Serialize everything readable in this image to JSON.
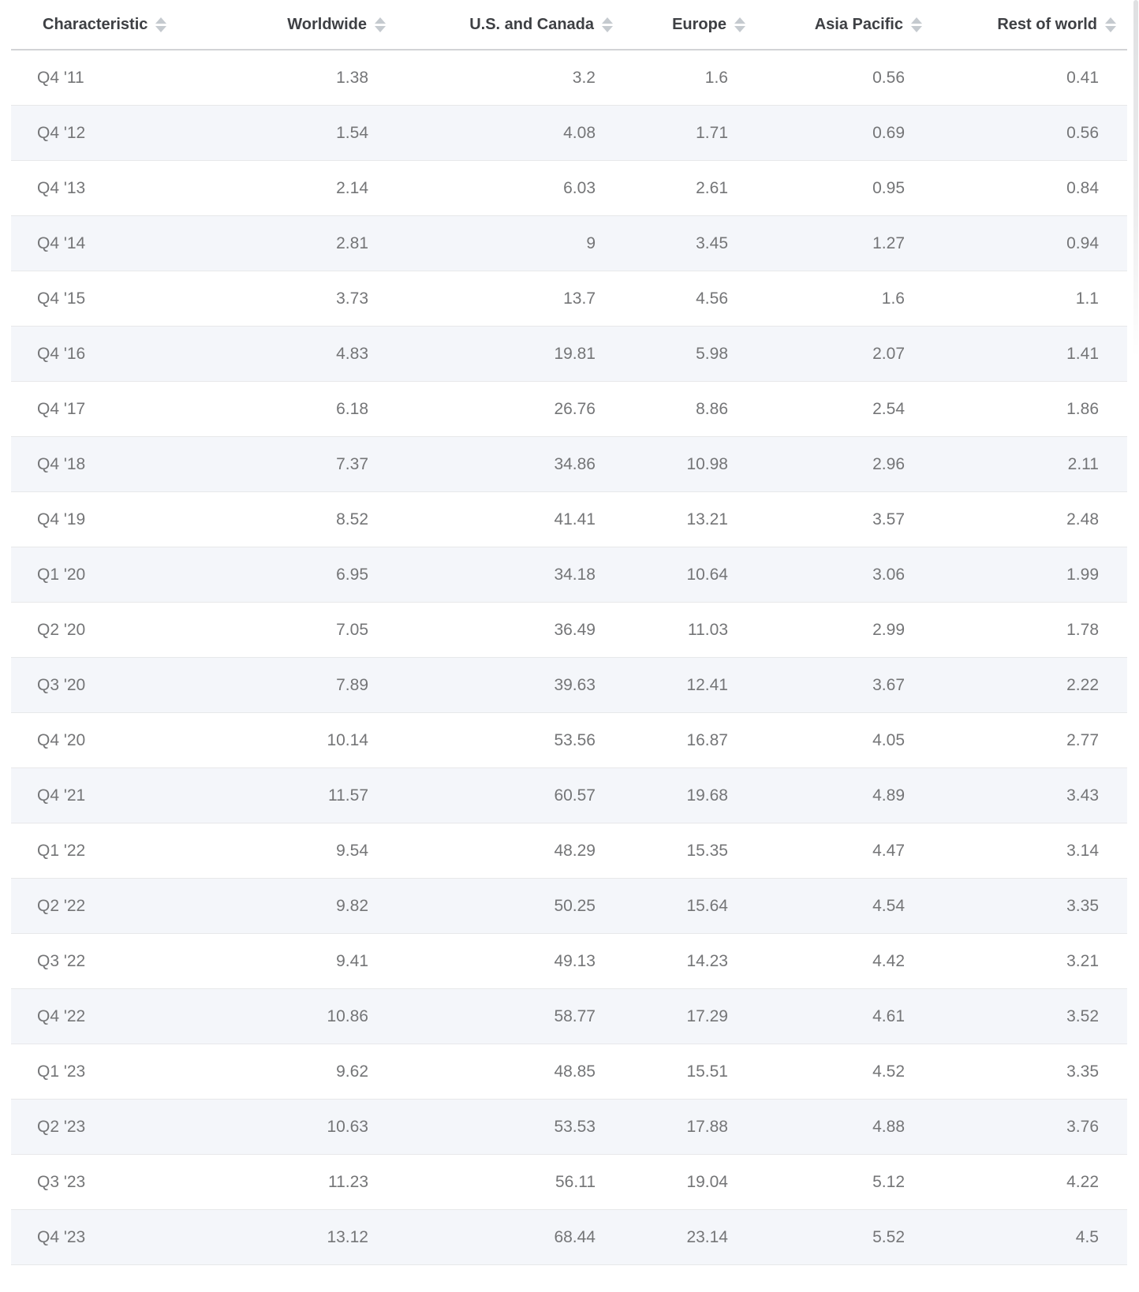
{
  "table": {
    "columns": [
      {
        "label": "Characteristic"
      },
      {
        "label": "Worldwide"
      },
      {
        "label": "U.S. and Canada"
      },
      {
        "label": "Europe"
      },
      {
        "label": "Asia Pacific"
      },
      {
        "label": "Rest of world"
      }
    ],
    "rows": [
      {
        "label": "Q4 '11",
        "values": [
          "1.38",
          "3.2",
          "1.6",
          "0.56",
          "0.41"
        ]
      },
      {
        "label": "Q4 '12",
        "values": [
          "1.54",
          "4.08",
          "1.71",
          "0.69",
          "0.56"
        ]
      },
      {
        "label": "Q4 '13",
        "values": [
          "2.14",
          "6.03",
          "2.61",
          "0.95",
          "0.84"
        ]
      },
      {
        "label": "Q4 '14",
        "values": [
          "2.81",
          "9",
          "3.45",
          "1.27",
          "0.94"
        ]
      },
      {
        "label": "Q4 '15",
        "values": [
          "3.73",
          "13.7",
          "4.56",
          "1.6",
          "1.1"
        ]
      },
      {
        "label": "Q4 '16",
        "values": [
          "4.83",
          "19.81",
          "5.98",
          "2.07",
          "1.41"
        ]
      },
      {
        "label": "Q4 '17",
        "values": [
          "6.18",
          "26.76",
          "8.86",
          "2.54",
          "1.86"
        ]
      },
      {
        "label": "Q4 '18",
        "values": [
          "7.37",
          "34.86",
          "10.98",
          "2.96",
          "2.11"
        ]
      },
      {
        "label": "Q4 '19",
        "values": [
          "8.52",
          "41.41",
          "13.21",
          "3.57",
          "2.48"
        ]
      },
      {
        "label": "Q1 '20",
        "values": [
          "6.95",
          "34.18",
          "10.64",
          "3.06",
          "1.99"
        ]
      },
      {
        "label": "Q2 '20",
        "values": [
          "7.05",
          "36.49",
          "11.03",
          "2.99",
          "1.78"
        ]
      },
      {
        "label": "Q3 '20",
        "values": [
          "7.89",
          "39.63",
          "12.41",
          "3.67",
          "2.22"
        ]
      },
      {
        "label": "Q4 '20",
        "values": [
          "10.14",
          "53.56",
          "16.87",
          "4.05",
          "2.77"
        ]
      },
      {
        "label": "Q4 '21",
        "values": [
          "11.57",
          "60.57",
          "19.68",
          "4.89",
          "3.43"
        ]
      },
      {
        "label": "Q1 '22",
        "values": [
          "9.54",
          "48.29",
          "15.35",
          "4.47",
          "3.14"
        ]
      },
      {
        "label": "Q2 '22",
        "values": [
          "9.82",
          "50.25",
          "15.64",
          "4.54",
          "3.35"
        ]
      },
      {
        "label": "Q3 '22",
        "values": [
          "9.41",
          "49.13",
          "14.23",
          "4.42",
          "3.21"
        ]
      },
      {
        "label": "Q4 '22",
        "values": [
          "10.86",
          "58.77",
          "17.29",
          "4.61",
          "3.52"
        ]
      },
      {
        "label": "Q1 '23",
        "values": [
          "9.62",
          "48.85",
          "15.51",
          "4.52",
          "3.35"
        ]
      },
      {
        "label": "Q2 '23",
        "values": [
          "10.63",
          "53.53",
          "17.88",
          "4.88",
          "3.76"
        ]
      },
      {
        "label": "Q3 '23",
        "values": [
          "11.23",
          "56.11",
          "19.04",
          "5.12",
          "4.22"
        ]
      },
      {
        "label": "Q4 '23",
        "values": [
          "13.12",
          "68.44",
          "23.14",
          "5.52",
          "4.5"
        ]
      }
    ]
  },
  "chart_data": {
    "type": "table",
    "categories": [
      "Q4 '11",
      "Q4 '12",
      "Q4 '13",
      "Q4 '14",
      "Q4 '15",
      "Q4 '16",
      "Q4 '17",
      "Q4 '18",
      "Q4 '19",
      "Q1 '20",
      "Q2 '20",
      "Q3 '20",
      "Q4 '20",
      "Q4 '21",
      "Q1 '22",
      "Q2 '22",
      "Q3 '22",
      "Q4 '22",
      "Q1 '23",
      "Q2 '23",
      "Q3 '23",
      "Q4 '23"
    ],
    "series": [
      {
        "name": "Worldwide",
        "values": [
          1.38,
          1.54,
          2.14,
          2.81,
          3.73,
          4.83,
          6.18,
          7.37,
          8.52,
          6.95,
          7.05,
          7.89,
          10.14,
          11.57,
          9.54,
          9.82,
          9.41,
          10.86,
          9.62,
          10.63,
          11.23,
          13.12
        ]
      },
      {
        "name": "U.S. and Canada",
        "values": [
          3.2,
          4.08,
          6.03,
          9,
          13.7,
          19.81,
          26.76,
          34.86,
          41.41,
          34.18,
          36.49,
          39.63,
          53.56,
          60.57,
          48.29,
          50.25,
          49.13,
          58.77,
          48.85,
          53.53,
          56.11,
          68.44
        ]
      },
      {
        "name": "Europe",
        "values": [
          1.6,
          1.71,
          2.61,
          3.45,
          4.56,
          5.98,
          8.86,
          10.98,
          13.21,
          10.64,
          11.03,
          12.41,
          16.87,
          19.68,
          15.35,
          15.64,
          14.23,
          17.29,
          15.51,
          17.88,
          19.04,
          23.14
        ]
      },
      {
        "name": "Asia Pacific",
        "values": [
          0.56,
          0.69,
          0.95,
          1.27,
          1.6,
          2.07,
          2.54,
          2.96,
          3.57,
          3.06,
          2.99,
          3.67,
          4.05,
          4.89,
          4.47,
          4.54,
          4.42,
          4.61,
          4.52,
          4.88,
          5.12,
          5.52
        ]
      },
      {
        "name": "Rest of world",
        "values": [
          0.41,
          0.56,
          0.84,
          0.94,
          1.1,
          1.41,
          1.86,
          2.11,
          2.48,
          1.99,
          1.78,
          2.22,
          2.77,
          3.43,
          3.14,
          3.35,
          3.21,
          3.52,
          3.35,
          3.76,
          4.22,
          4.5
        ]
      }
    ],
    "layout": {
      "first_column_header": "Characteristic",
      "sortable_columns": true,
      "zebra_striping": true
    }
  },
  "colors": {
    "header_text": "#3e4044",
    "cell_text": "#747577",
    "stripe_background": "#f4f6fa",
    "row_divider": "#e7e8ea",
    "header_divider": "#d2d3d6",
    "sort_icon": "#c5cacf"
  }
}
